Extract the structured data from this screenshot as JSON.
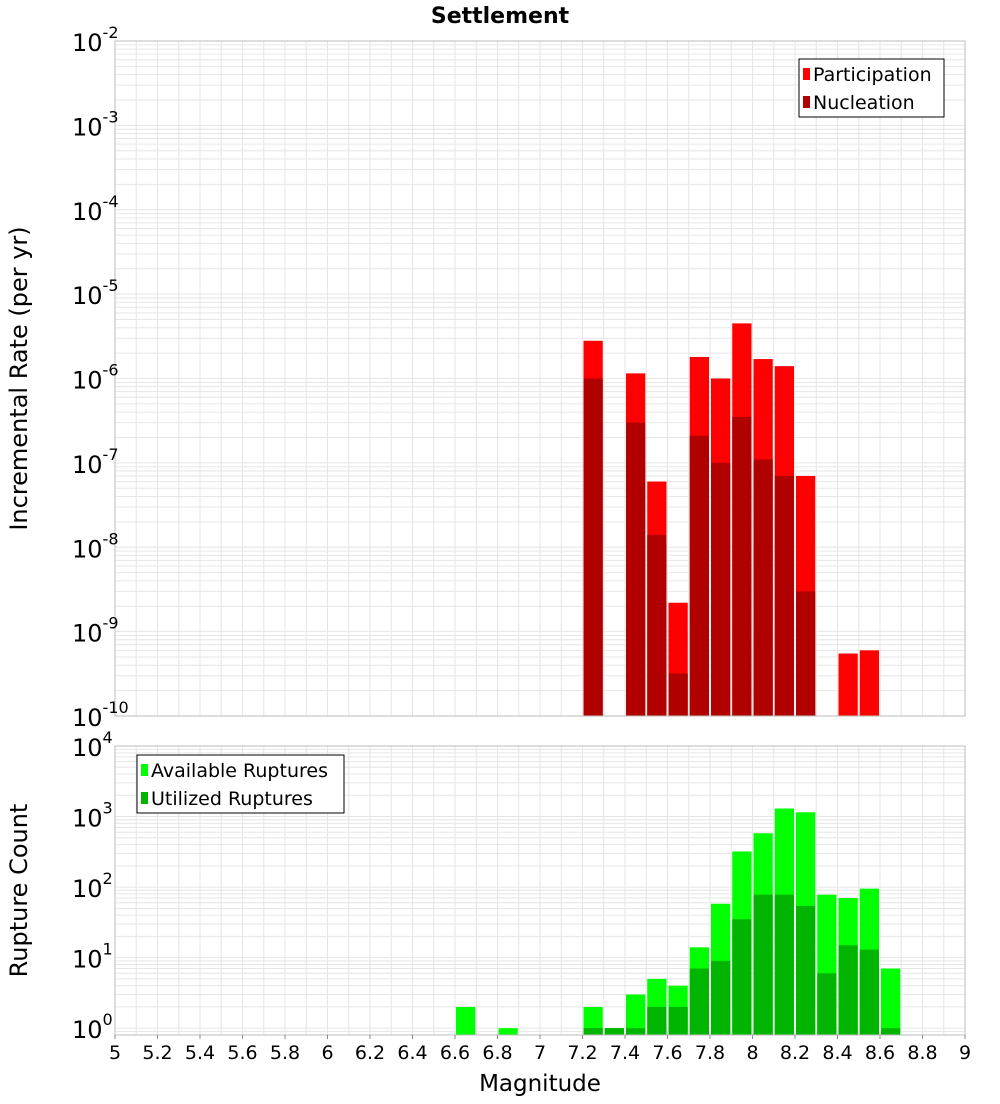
{
  "title": "Settlement",
  "colors": {
    "participation": "#ff0000",
    "nucleation": "#b00000",
    "available": "#00ff00",
    "utilized": "#00b400",
    "grid": "#e6e6e6",
    "frame": "#bbbbbb"
  },
  "chart_data": [
    {
      "type": "bar",
      "scale": "log",
      "title": "Settlement",
      "ylabel": "Incremental Rate (per yr)",
      "xlabel": "",
      "ylim": [
        1e-10,
        0.01
      ],
      "xlim": [
        5,
        9
      ],
      "y_tick_exponents": [
        "-10",
        "-9",
        "-8",
        "-7",
        "-6",
        "-5",
        "-4",
        "-3",
        "-2"
      ],
      "bin_width": 0.1,
      "legend": {
        "position": "top-right"
      },
      "series": [
        {
          "name": "Participation",
          "color": "#ff0000",
          "points": [
            {
              "x": 7.25,
              "y": 2.8e-06
            },
            {
              "x": 7.45,
              "y": 1.15e-06
            },
            {
              "x": 7.55,
              "y": 6e-08
            },
            {
              "x": 7.65,
              "y": 2.2e-09
            },
            {
              "x": 7.75,
              "y": 1.8e-06
            },
            {
              "x": 7.85,
              "y": 1e-06
            },
            {
              "x": 7.95,
              "y": 4.5e-06
            },
            {
              "x": 8.05,
              "y": 1.7e-06
            },
            {
              "x": 8.15,
              "y": 1.4e-06
            },
            {
              "x": 8.25,
              "y": 7e-08
            },
            {
              "x": 8.45,
              "y": 5.5e-10
            },
            {
              "x": 8.55,
              "y": 6e-10
            }
          ]
        },
        {
          "name": "Nucleation",
          "color": "#b00000",
          "points": [
            {
              "x": 7.25,
              "y": 1e-06
            },
            {
              "x": 7.45,
              "y": 3e-07
            },
            {
              "x": 7.55,
              "y": 1.4e-08
            },
            {
              "x": 7.65,
              "y": 3.2e-10
            },
            {
              "x": 7.75,
              "y": 2.1e-07
            },
            {
              "x": 7.85,
              "y": 1e-07
            },
            {
              "x": 7.95,
              "y": 3.5e-07
            },
            {
              "x": 8.05,
              "y": 1.1e-07
            },
            {
              "x": 8.15,
              "y": 7e-08
            },
            {
              "x": 8.25,
              "y": 3e-09
            }
          ]
        }
      ]
    },
    {
      "type": "bar",
      "scale": "log",
      "title": "",
      "ylabel": "Rupture Count",
      "xlabel": "Magnitude",
      "ylim": [
        0.8,
        10000
      ],
      "xlim": [
        5,
        9
      ],
      "y_tick_exponents": [
        "0",
        "1",
        "2",
        "3",
        "4"
      ],
      "x_ticks": [
        "5",
        "5.2",
        "5.4",
        "5.6",
        "5.8",
        "6",
        "6.2",
        "6.4",
        "6.6",
        "6.8",
        "7",
        "7.2",
        "7.4",
        "7.6",
        "7.8",
        "8",
        "8.2",
        "8.4",
        "8.6",
        "8.8",
        "9"
      ],
      "bin_width": 0.1,
      "legend": {
        "position": "top-left"
      },
      "series": [
        {
          "name": "Available Ruptures",
          "color": "#00ff00",
          "points": [
            {
              "x": 6.65,
              "y": 2
            },
            {
              "x": 6.85,
              "y": 1
            },
            {
              "x": 7.25,
              "y": 2
            },
            {
              "x": 7.35,
              "y": 1
            },
            {
              "x": 7.45,
              "y": 3
            },
            {
              "x": 7.55,
              "y": 5
            },
            {
              "x": 7.65,
              "y": 4
            },
            {
              "x": 7.75,
              "y": 14
            },
            {
              "x": 7.85,
              "y": 58
            },
            {
              "x": 7.95,
              "y": 320
            },
            {
              "x": 8.05,
              "y": 580
            },
            {
              "x": 8.15,
              "y": 1300
            },
            {
              "x": 8.25,
              "y": 1150
            },
            {
              "x": 8.35,
              "y": 78
            },
            {
              "x": 8.45,
              "y": 70
            },
            {
              "x": 8.55,
              "y": 95
            },
            {
              "x": 8.65,
              "y": 7
            }
          ]
        },
        {
          "name": "Utilized Ruptures",
          "color": "#00b400",
          "points": [
            {
              "x": 7.25,
              "y": 1
            },
            {
              "x": 7.35,
              "y": 1
            },
            {
              "x": 7.45,
              "y": 1
            },
            {
              "x": 7.55,
              "y": 2
            },
            {
              "x": 7.65,
              "y": 2
            },
            {
              "x": 7.75,
              "y": 7
            },
            {
              "x": 7.85,
              "y": 9
            },
            {
              "x": 7.95,
              "y": 35
            },
            {
              "x": 8.05,
              "y": 78
            },
            {
              "x": 8.15,
              "y": 78
            },
            {
              "x": 8.25,
              "y": 54
            },
            {
              "x": 8.35,
              "y": 6
            },
            {
              "x": 8.45,
              "y": 15
            },
            {
              "x": 8.55,
              "y": 13
            },
            {
              "x": 8.65,
              "y": 1
            }
          ]
        }
      ]
    }
  ]
}
